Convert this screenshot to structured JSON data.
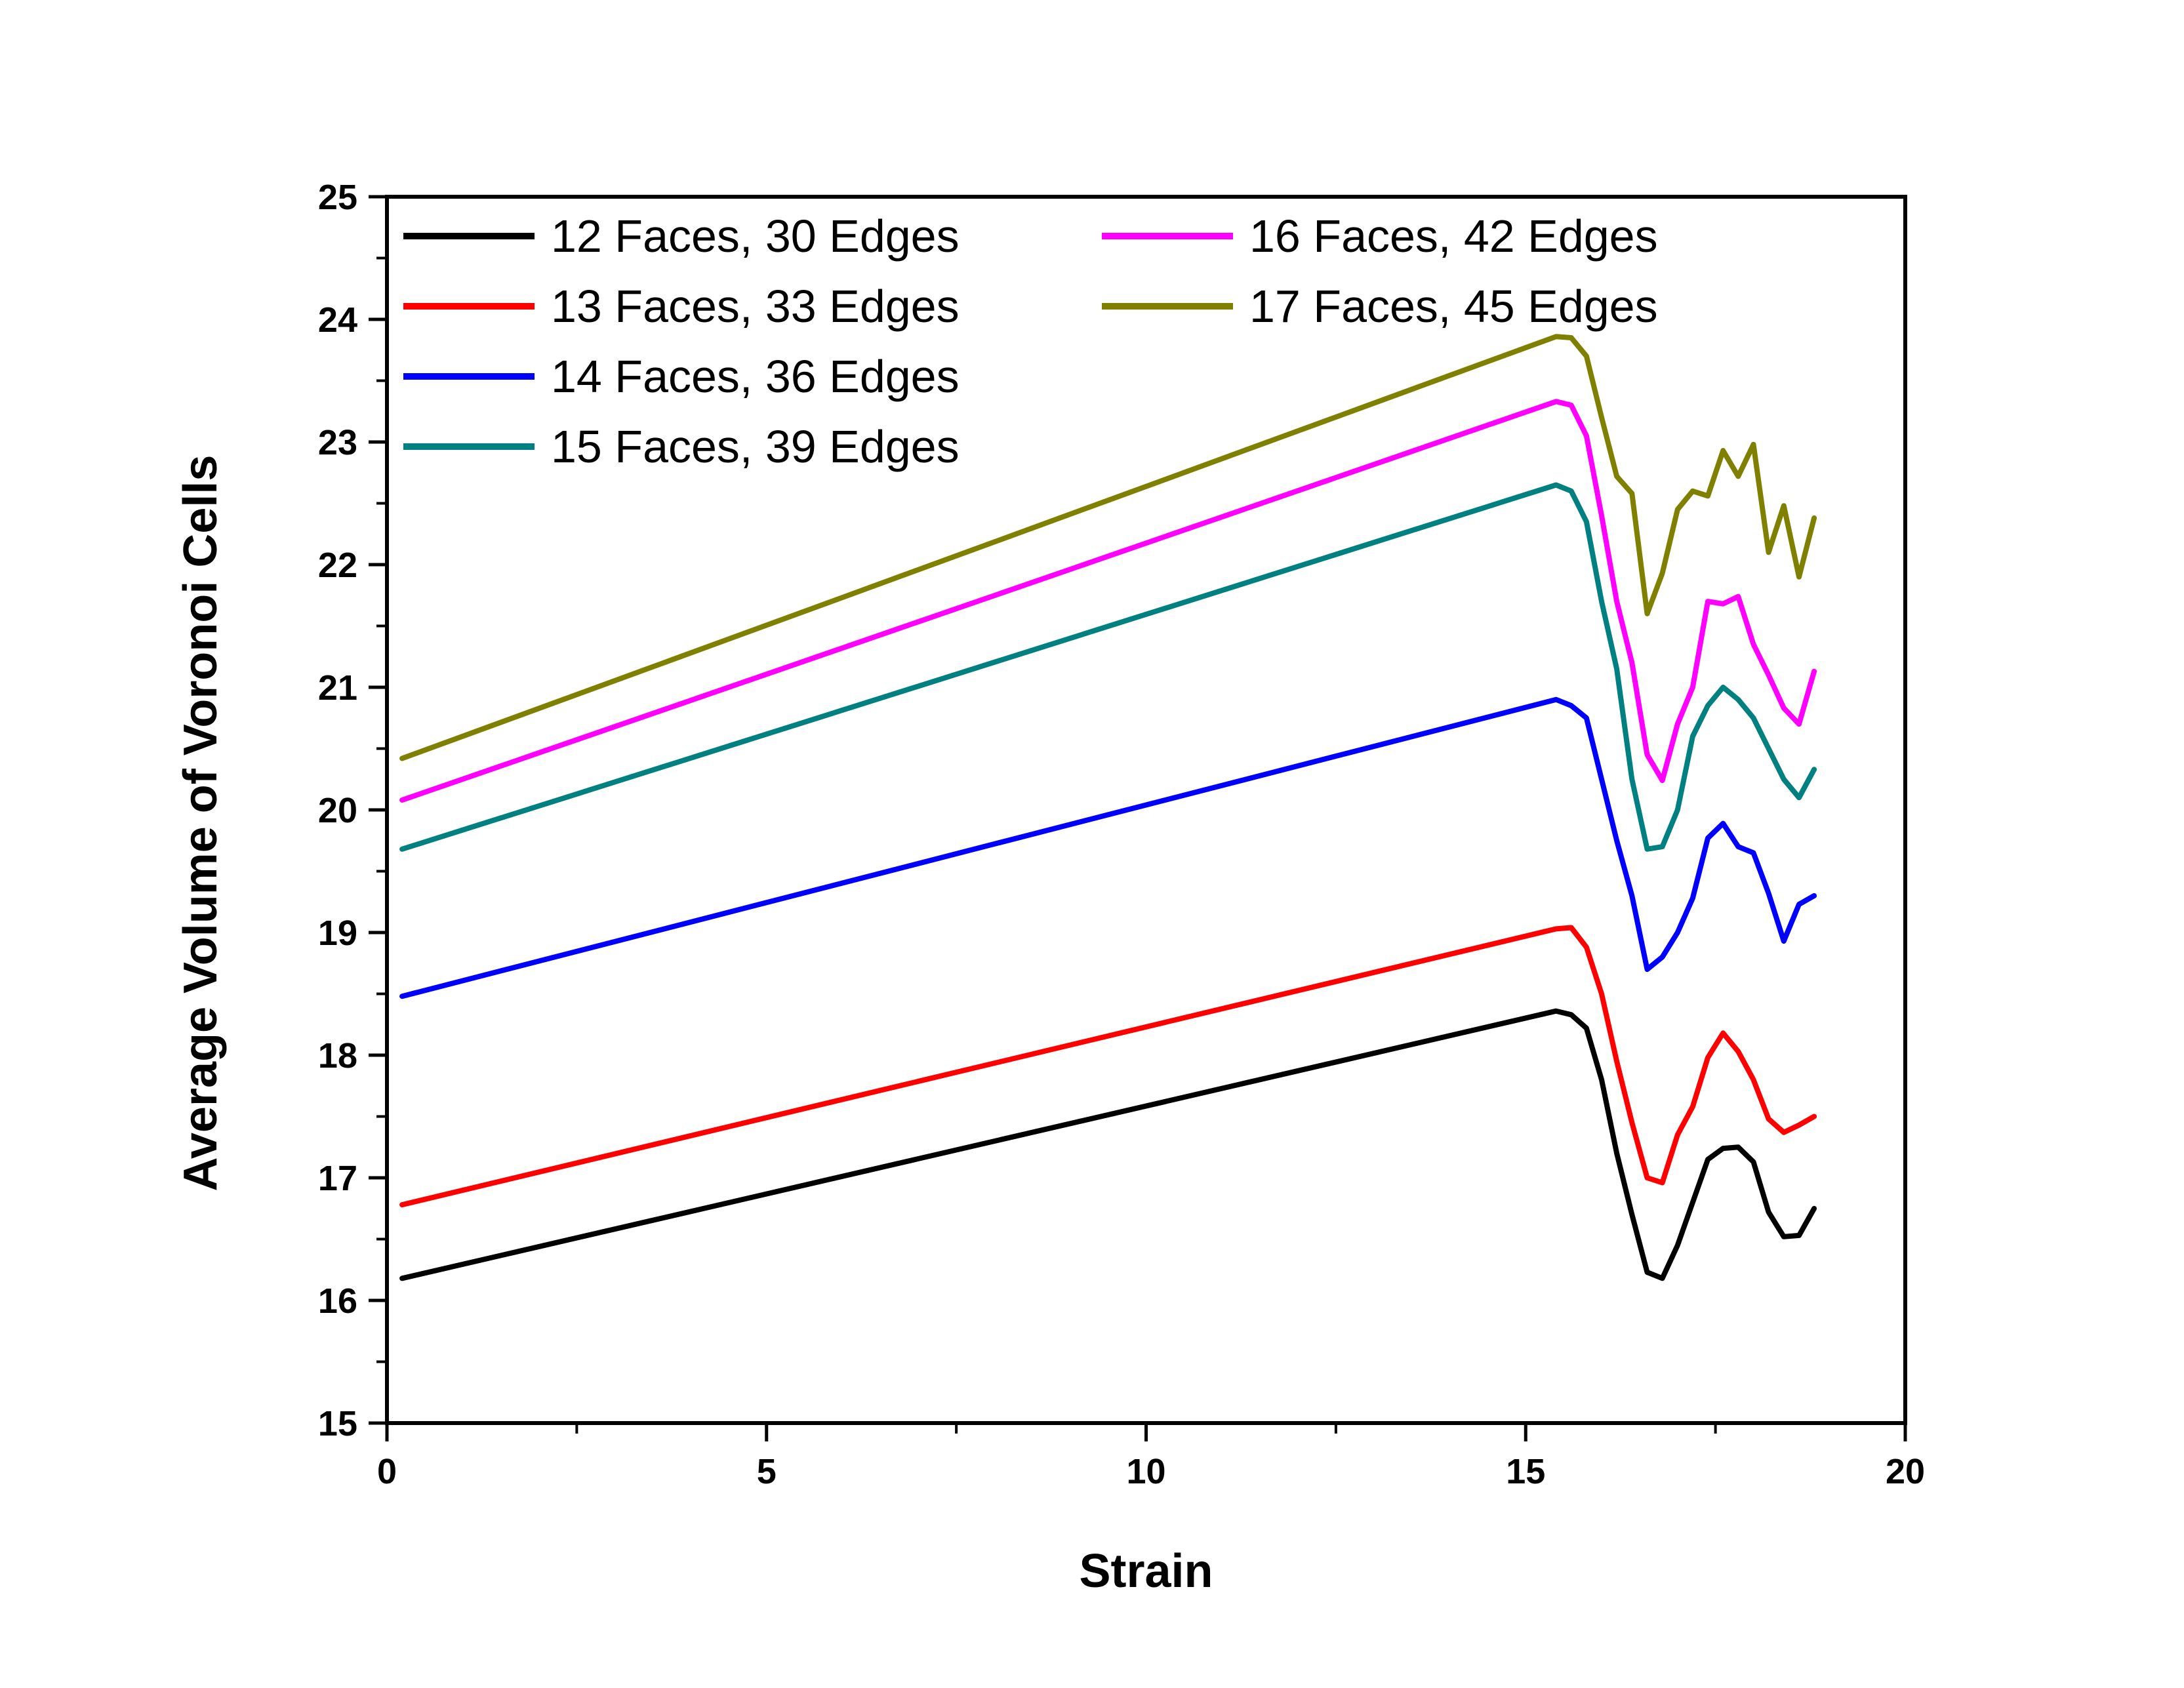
{
  "chart_data": {
    "type": "line",
    "xlabel": "Strain",
    "ylabel": "Average Volume of Voronoi Cells",
    "xlim": [
      0,
      20
    ],
    "ylim": [
      15,
      25
    ],
    "x_ticks": [
      0,
      5,
      10,
      15,
      20
    ],
    "y_ticks": [
      15,
      16,
      17,
      18,
      19,
      20,
      21,
      22,
      23,
      24,
      25
    ],
    "grid": false,
    "legend_position": "top-left, two columns",
    "x": [
      0.2,
      15.4,
      15.6,
      15.8,
      16.0,
      16.2,
      16.4,
      16.6,
      16.8,
      17.0,
      17.2,
      17.4,
      17.6,
      17.8,
      18.0,
      18.2,
      18.4,
      18.6,
      18.8
    ],
    "series": [
      {
        "name": "12 Faces, 30 Edges",
        "color": "#000000",
        "values": [
          16.18,
          18.36,
          18.33,
          18.22,
          17.8,
          17.2,
          16.7,
          16.23,
          16.18,
          16.45,
          16.8,
          17.15,
          17.24,
          17.25,
          17.13,
          16.72,
          16.52,
          16.53,
          16.75
        ]
      },
      {
        "name": "13 Faces, 33 Edges",
        "color": "#ff0000",
        "values": [
          16.78,
          19.03,
          19.04,
          18.88,
          18.5,
          17.95,
          17.45,
          17.0,
          16.96,
          17.35,
          17.58,
          17.98,
          18.18,
          18.03,
          17.8,
          17.48,
          17.37,
          17.43,
          17.5
        ]
      },
      {
        "name": "14 Faces, 36 Edges",
        "color": "#0000ff",
        "values": [
          18.48,
          20.9,
          20.85,
          20.75,
          20.25,
          19.75,
          19.3,
          18.7,
          18.8,
          19.0,
          19.28,
          19.77,
          19.89,
          19.7,
          19.65,
          19.32,
          18.93,
          19.23,
          19.3
        ]
      },
      {
        "name": "15 Faces, 39 Edges",
        "color": "#008080",
        "values": [
          19.68,
          22.65,
          22.6,
          22.35,
          21.7,
          21.15,
          20.25,
          19.68,
          19.7,
          20.0,
          20.6,
          20.85,
          21.0,
          20.9,
          20.75,
          20.5,
          20.25,
          20.1,
          20.33
        ]
      },
      {
        "name": "16 Faces, 42 Edges",
        "color": "#ff00ff",
        "values": [
          20.08,
          23.33,
          23.3,
          23.05,
          22.4,
          21.7,
          21.2,
          20.45,
          20.24,
          20.7,
          21.0,
          21.7,
          21.68,
          21.74,
          21.35,
          21.1,
          20.83,
          20.7,
          21.13
        ]
      },
      {
        "name": "17 Faces, 45 Edges",
        "color": "#808000",
        "values": [
          20.42,
          23.86,
          23.85,
          23.7,
          23.2,
          22.72,
          22.58,
          21.6,
          21.93,
          22.45,
          22.6,
          22.56,
          22.93,
          22.72,
          22.98,
          22.1,
          22.48,
          21.9,
          22.38
        ]
      }
    ]
  }
}
